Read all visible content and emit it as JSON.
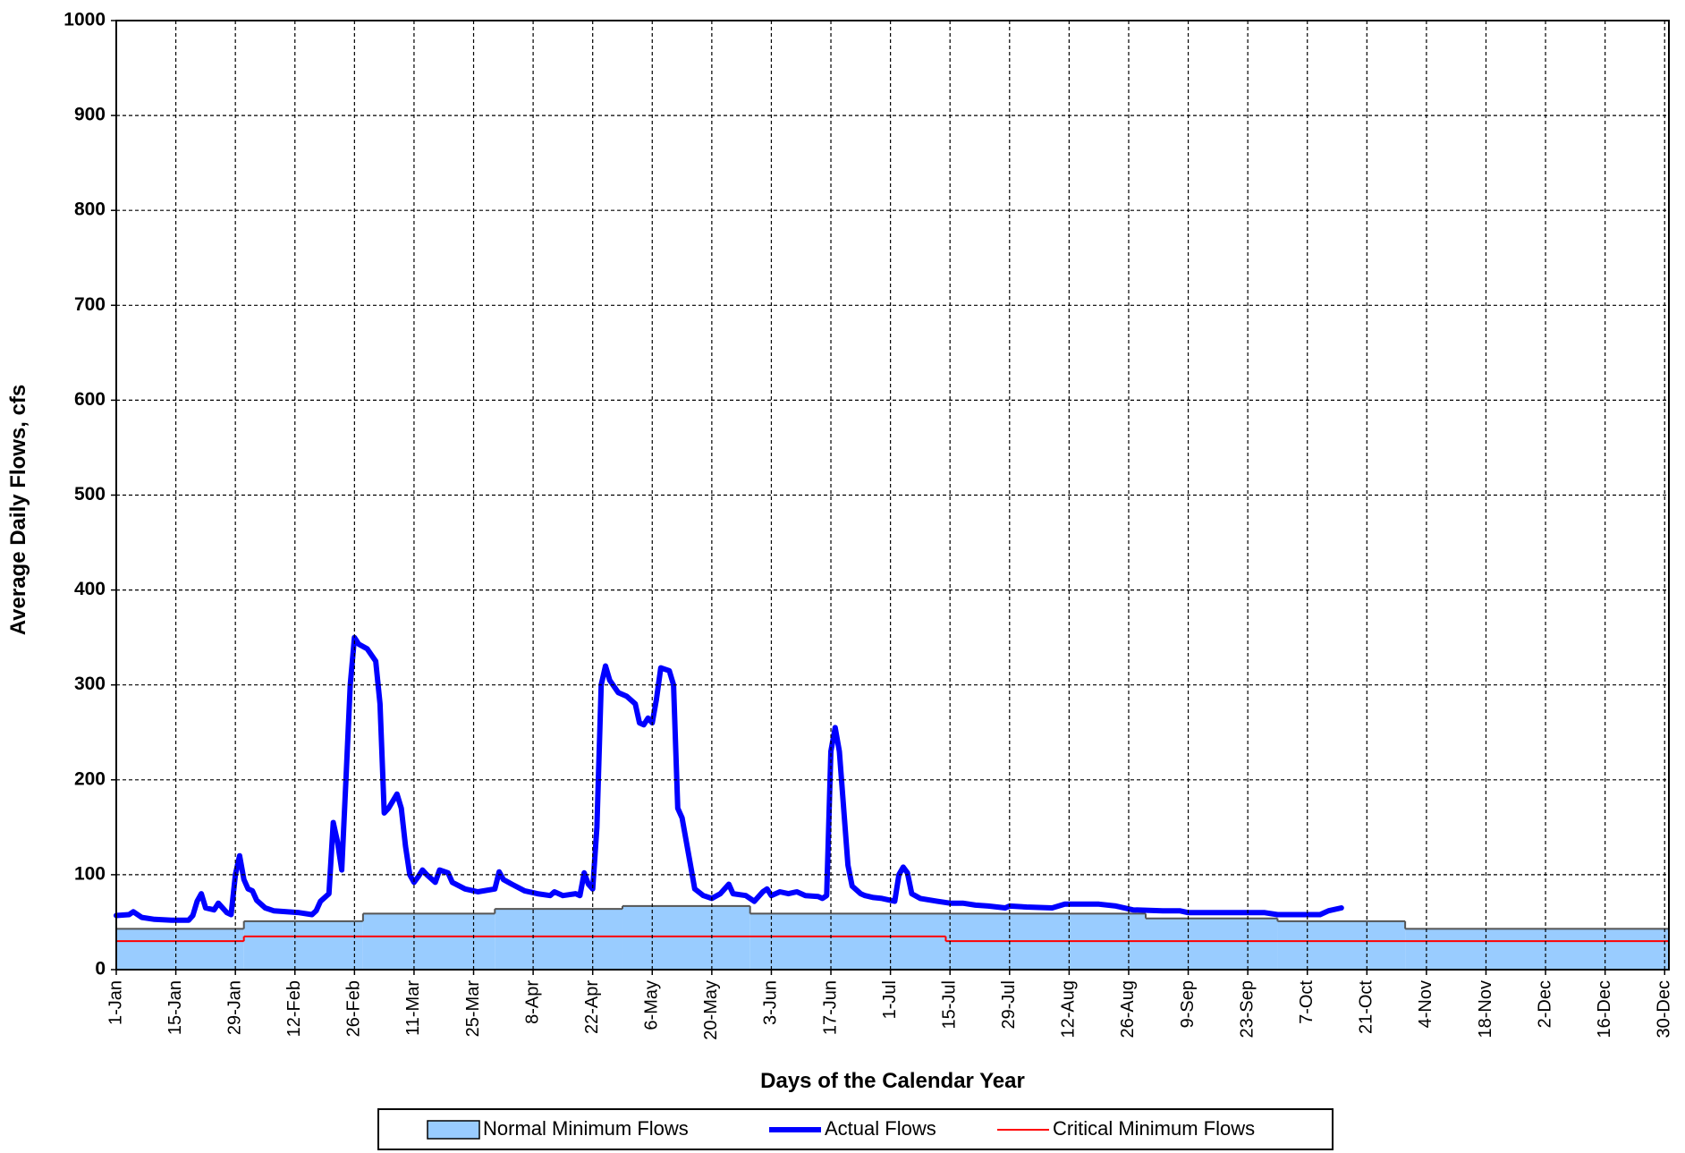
{
  "chart_data": {
    "type": "line",
    "y_label": "Average Daily Flows, cfs",
    "x_label": "Days of the Calendar Year",
    "xlim": [
      1,
      366
    ],
    "ylim": [
      0,
      1000
    ],
    "yticks": [
      0,
      100,
      200,
      300,
      400,
      500,
      600,
      700,
      800,
      900,
      1000
    ],
    "xticks": [
      {
        "value": 1,
        "label": "1-Jan"
      },
      {
        "value": 15,
        "label": "15-Jan"
      },
      {
        "value": 29,
        "label": "29-Jan"
      },
      {
        "value": 43,
        "label": "12-Feb"
      },
      {
        "value": 57,
        "label": "26-Feb"
      },
      {
        "value": 71,
        "label": "11-Mar"
      },
      {
        "value": 85,
        "label": "25-Mar"
      },
      {
        "value": 99,
        "label": "8-Apr"
      },
      {
        "value": 113,
        "label": "22-Apr"
      },
      {
        "value": 127,
        "label": "6-May"
      },
      {
        "value": 141,
        "label": "20-May"
      },
      {
        "value": 155,
        "label": "3-Jun"
      },
      {
        "value": 169,
        "label": "17-Jun"
      },
      {
        "value": 183,
        "label": "1-Jul"
      },
      {
        "value": 197,
        "label": "15-Jul"
      },
      {
        "value": 211,
        "label": "29-Jul"
      },
      {
        "value": 225,
        "label": "12-Aug"
      },
      {
        "value": 239,
        "label": "26-Aug"
      },
      {
        "value": 253,
        "label": "9-Sep"
      },
      {
        "value": 267,
        "label": "23-Sep"
      },
      {
        "value": 281,
        "label": "7-Oct"
      },
      {
        "value": 295,
        "label": "21-Oct"
      },
      {
        "value": 309,
        "label": "4-Nov"
      },
      {
        "value": 323,
        "label": "18-Nov"
      },
      {
        "value": 337,
        "label": "2-Dec"
      },
      {
        "value": 351,
        "label": "16-Dec"
      },
      {
        "value": 365,
        "label": "30-Dec"
      }
    ],
    "grid": true,
    "legend": "bottom",
    "series": [
      {
        "name": "Normal Minimum Flows",
        "color": "#99ccff",
        "style": "area",
        "step": true,
        "x": [
          1,
          31,
          59,
          90,
          120,
          150,
          243,
          274,
          304
        ],
        "values": [
          43,
          51,
          59,
          64,
          67,
          59,
          54,
          51,
          43
        ]
      },
      {
        "name": "Actual Flows",
        "color": "#0000ff",
        "style": "line",
        "step": false,
        "x": [
          1,
          4,
          5,
          7,
          10,
          14,
          18,
          19,
          20,
          21,
          22,
          24,
          25,
          27,
          28,
          29,
          30,
          31,
          32,
          33,
          34,
          36,
          38,
          41,
          44,
          47,
          48,
          49,
          51,
          52,
          53,
          54,
          55,
          56,
          57,
          58,
          60,
          62,
          63,
          64,
          65,
          67,
          68,
          69,
          70,
          71,
          72,
          73,
          74,
          76,
          77,
          79,
          80,
          83,
          86,
          90,
          91,
          92,
          94,
          97,
          100,
          103,
          104,
          106,
          109,
          110,
          111,
          112,
          113,
          114,
          115,
          116,
          117,
          119,
          121,
          123,
          124,
          125,
          126,
          127,
          128,
          129,
          131,
          132,
          133,
          134,
          136,
          137,
          139,
          141,
          143,
          145,
          146,
          149,
          151,
          153,
          154,
          155,
          157,
          159,
          161,
          163,
          166,
          167,
          168,
          169,
          170,
          171,
          172,
          173,
          174,
          176,
          177,
          179,
          181,
          184,
          185,
          186,
          187,
          188,
          190,
          194,
          197,
          200,
          203,
          206,
          210,
          211,
          215,
          221,
          224,
          232,
          236,
          240,
          247,
          251,
          253,
          262,
          271,
          274,
          284,
          286,
          289
        ],
        "values": [
          57,
          58,
          61,
          55,
          53,
          52,
          52,
          57,
          72,
          80,
          65,
          63,
          70,
          60,
          58,
          100,
          120,
          95,
          85,
          83,
          73,
          65,
          62,
          61,
          60,
          58,
          62,
          72,
          80,
          155,
          135,
          105,
          200,
          300,
          350,
          343,
          338,
          325,
          280,
          165,
          170,
          185,
          170,
          130,
          100,
          92,
          98,
          105,
          100,
          92,
          105,
          102,
          92,
          85,
          82,
          85,
          103,
          95,
          90,
          83,
          80,
          78,
          82,
          78,
          80,
          78,
          102,
          90,
          85,
          150,
          300,
          320,
          305,
          292,
          288,
          280,
          260,
          258,
          265,
          260,
          285,
          318,
          315,
          300,
          170,
          160,
          110,
          85,
          78,
          75,
          80,
          90,
          80,
          78,
          72,
          82,
          85,
          78,
          82,
          80,
          82,
          78,
          77,
          75,
          78,
          230,
          255,
          230,
          170,
          110,
          88,
          80,
          78,
          76,
          75,
          72,
          100,
          108,
          102,
          80,
          75,
          72,
          70,
          70,
          68,
          67,
          65,
          67,
          66,
          65,
          69,
          69,
          67,
          63,
          62,
          62,
          60,
          60,
          60,
          58,
          58,
          62,
          65
        ]
      },
      {
        "name": "Critical Minimum Flows",
        "color": "#ff0000",
        "style": "line",
        "step": true,
        "x": [
          1,
          31,
          196
        ],
        "values": [
          30,
          35,
          30
        ]
      }
    ]
  }
}
